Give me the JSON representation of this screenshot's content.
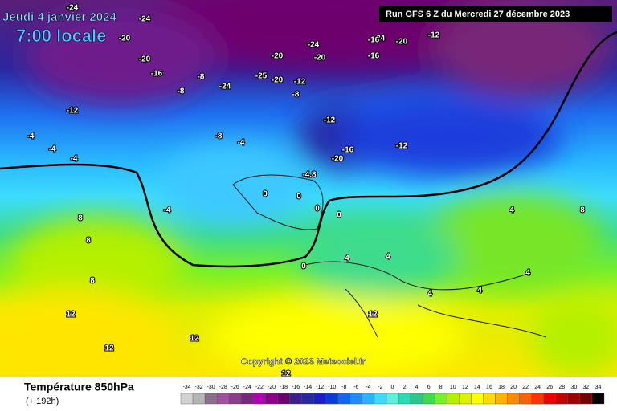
{
  "header": {
    "date": "Jeudi 4 janvier 2024",
    "time": "7:00 locale",
    "run": "Run GFS 6 Z du Mercredi 27 décembre 2023"
  },
  "copyright": "Copyright © 2023 Meteociel.fr",
  "footer": {
    "title": "Température 850hPa",
    "lead": "(+ 192h)"
  },
  "scale": {
    "ticks": [
      -34,
      -32,
      -30,
      -28,
      -26,
      -24,
      -22,
      -20,
      -18,
      -16,
      -14,
      -12,
      -10,
      -8,
      -6,
      -4,
      -2,
      0,
      2,
      4,
      6,
      8,
      10,
      12,
      14,
      16,
      18,
      20,
      22,
      24,
      26,
      28,
      30,
      32,
      34
    ],
    "colors": [
      "#d2d2d2",
      "#b4b4b4",
      "#8c6e8c",
      "#a050a0",
      "#8c3c8c",
      "#782878",
      "#b400b4",
      "#8c008c",
      "#6e006e",
      "#3c1e8c",
      "#2828a0",
      "#1e1ec8",
      "#0a3cdc",
      "#1464f0",
      "#1e8cff",
      "#28b4ff",
      "#3cdcff",
      "#5af0dc",
      "#28dcb4",
      "#28c88c",
      "#3cdc50",
      "#78f028",
      "#b4f000",
      "#dcf000",
      "#ffff00",
      "#ffdc00",
      "#ffb400",
      "#ff8c00",
      "#ff6400",
      "#ff3200",
      "#f00000",
      "#c80000",
      "#a00000",
      "#780000",
      "#000000"
    ]
  },
  "map": {
    "labels": [
      -24,
      -24,
      -20,
      -20,
      -16,
      -12,
      -8,
      -8,
      -4,
      -4,
      -24,
      -20,
      -24,
      -20,
      -16,
      -12,
      -8,
      -24,
      -25,
      -20,
      -16,
      -20,
      -12,
      -12,
      -16,
      -20,
      -12,
      -8,
      -4,
      -4,
      -4,
      0,
      0,
      0,
      0,
      0,
      4,
      4,
      4,
      8,
      8,
      8,
      12,
      12,
      12,
      12,
      4,
      4,
      8,
      12,
      -4.8,
      4
    ]
  }
}
